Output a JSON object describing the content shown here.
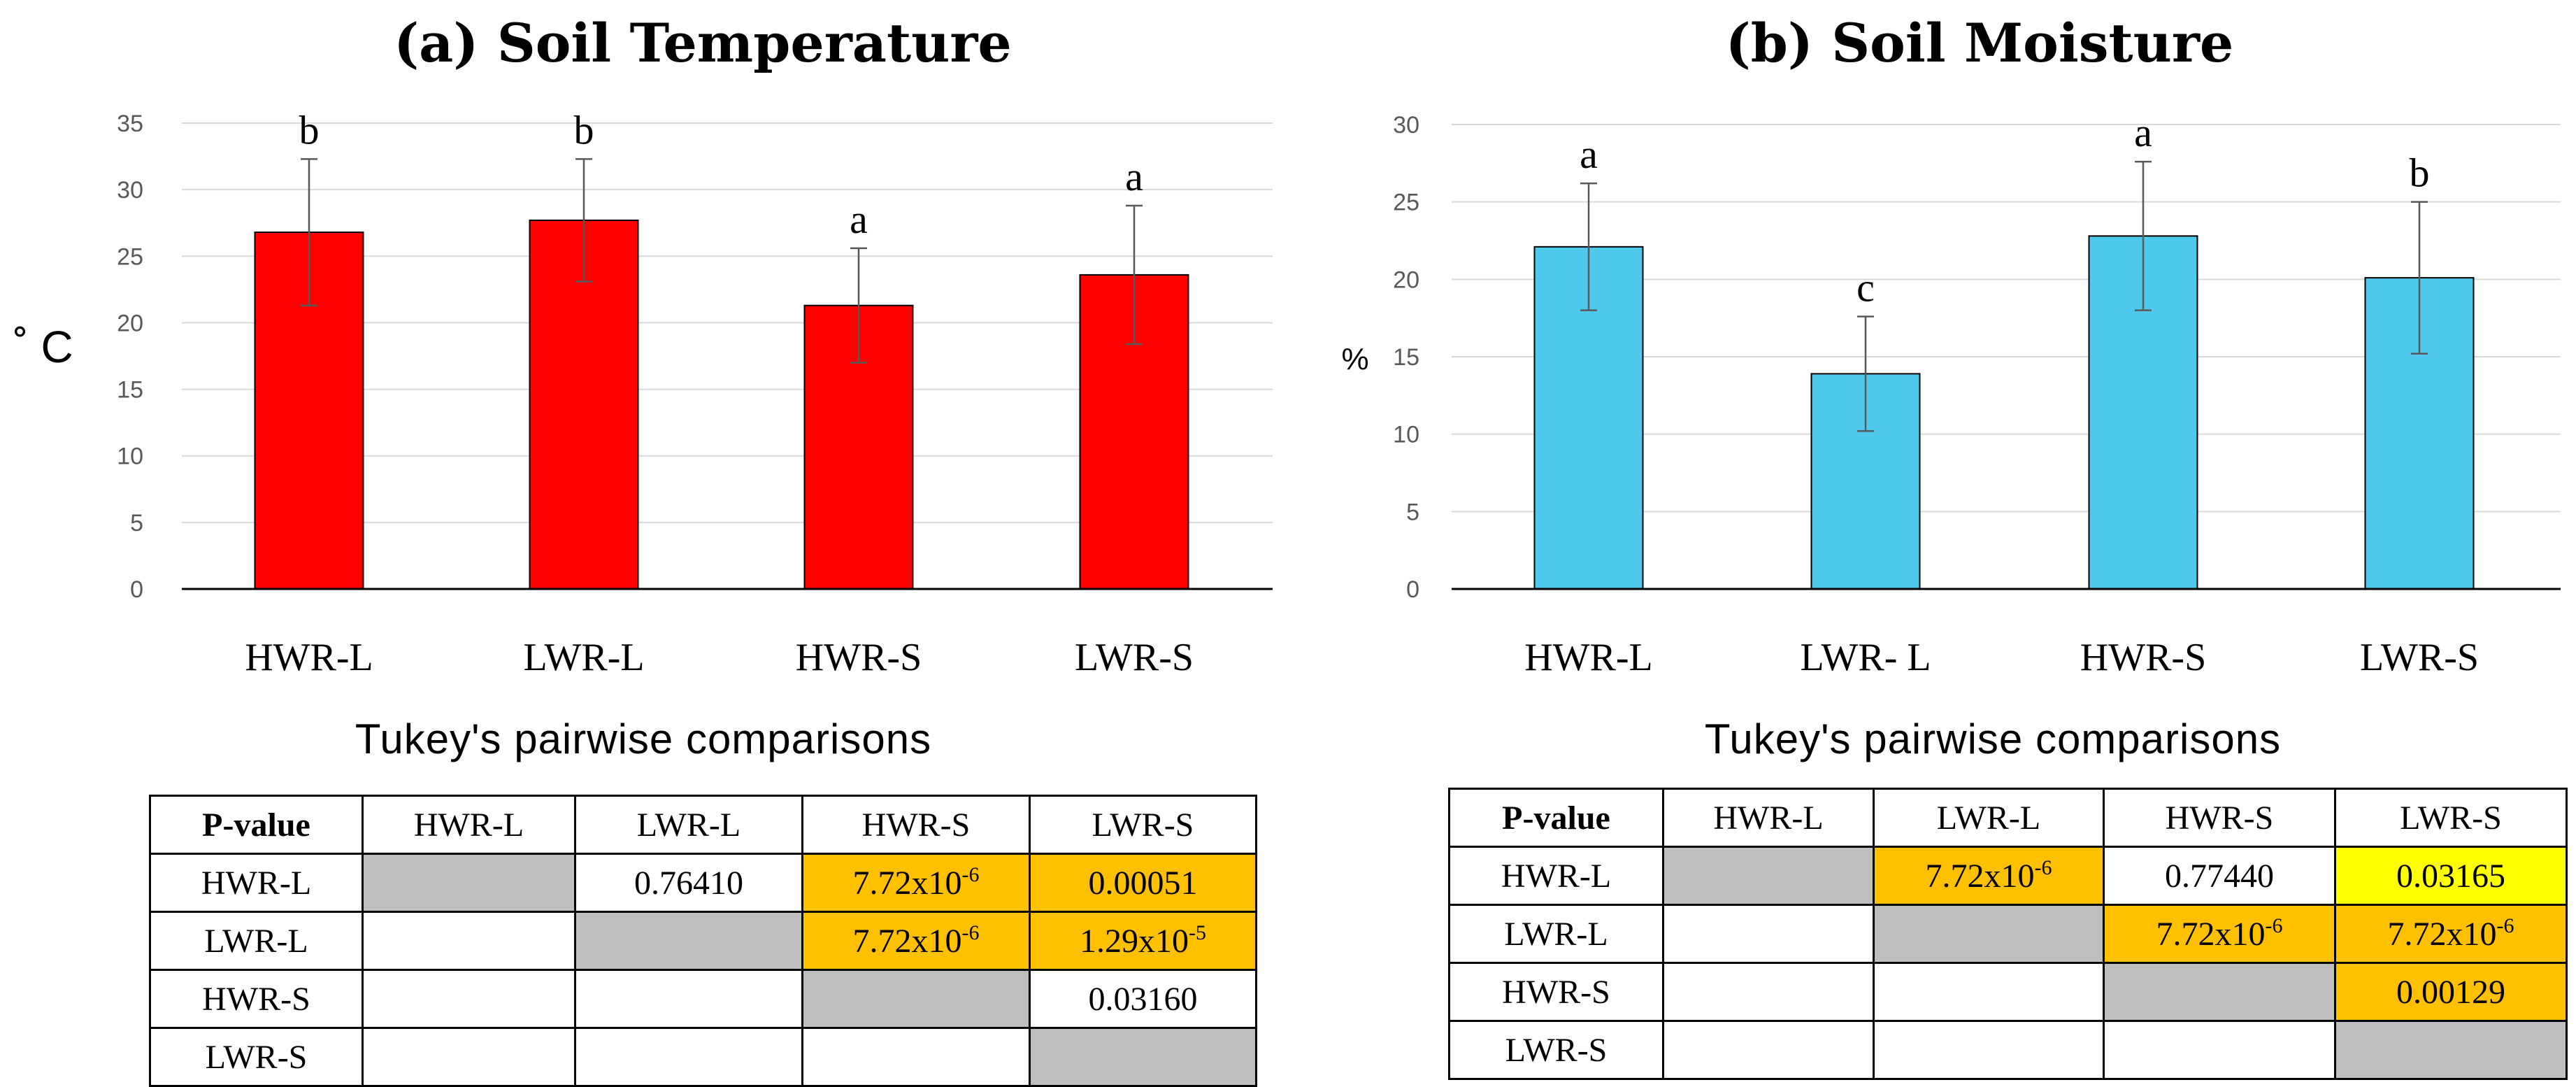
{
  "colors": {
    "panel_a_bar": "#ff0000",
    "panel_b_bar": "#4ec9ec",
    "diag": "#bfbfbf",
    "sig_high": "#ffc000",
    "sig_low": "#ffff00"
  },
  "chart_data": [
    {
      "type": "bar",
      "title": "(a) Soil Temperature",
      "ylabel": "˚ C",
      "xlabel": "",
      "categories": [
        "HWR-L",
        "LWR-L",
        "HWR-S",
        "LWR-S"
      ],
      "values": [
        26.8,
        27.7,
        21.3,
        23.6
      ],
      "errors": [
        5.5,
        4.6,
        4.3,
        5.2
      ],
      "letters": [
        "b",
        "b",
        "a",
        "a"
      ],
      "ylim": [
        0,
        35
      ],
      "yticks": [
        0,
        5,
        10,
        15,
        20,
        25,
        30,
        35
      ],
      "grid": true
    },
    {
      "type": "bar",
      "title": "(b) Soil Moisture",
      "ylabel": "%",
      "xlabel": "",
      "categories": [
        "HWR-L",
        "LWR- L",
        "HWR-S",
        "LWR-S"
      ],
      "values": [
        22.1,
        13.9,
        22.8,
        20.1
      ],
      "errors": [
        4.1,
        3.7,
        4.8,
        4.9
      ],
      "letters": [
        "a",
        "c",
        "a",
        "b"
      ],
      "ylim": [
        0,
        30
      ],
      "yticks": [
        0,
        5,
        10,
        15,
        20,
        25,
        30
      ],
      "grid": true
    }
  ],
  "tukey_a": {
    "title": "Tukey's pairwise comparisons",
    "header": [
      "P-value",
      "HWR-L",
      "LWR-L",
      "HWR-S",
      "LWR-S"
    ],
    "rows": [
      {
        "label": "HWR-L",
        "cells": [
          "",
          "0.76410",
          "7.72x10|-6",
          "0.00051"
        ],
        "status": [
          "diag",
          "none",
          "high",
          "high"
        ]
      },
      {
        "label": "LWR-L",
        "cells": [
          "",
          "",
          "7.72x10|-6",
          "1.29x10|-5"
        ],
        "status": [
          "none",
          "diag",
          "high",
          "high"
        ]
      },
      {
        "label": "HWR-S",
        "cells": [
          "",
          "",
          "",
          "0.03160"
        ],
        "status": [
          "none",
          "none",
          "diag",
          "none"
        ]
      },
      {
        "label": "LWR-S",
        "cells": [
          "",
          "",
          "",
          ""
        ],
        "status": [
          "none",
          "none",
          "none",
          "diag"
        ]
      }
    ]
  },
  "tukey_b": {
    "title": "Tukey's pairwise comparisons",
    "header": [
      "P-value",
      "HWR-L",
      "LWR-L",
      "HWR-S",
      "LWR-S"
    ],
    "rows": [
      {
        "label": "HWR-L",
        "cells": [
          "",
          "7.72x10|-6",
          "0.77440",
          "0.03165"
        ],
        "status": [
          "diag",
          "high",
          "none",
          "low"
        ]
      },
      {
        "label": "LWR-L",
        "cells": [
          "",
          "",
          "7.72x10|-6",
          "7.72x10|-6"
        ],
        "status": [
          "none",
          "diag",
          "high",
          "high"
        ]
      },
      {
        "label": "HWR-S",
        "cells": [
          "",
          "",
          "",
          "0.00129"
        ],
        "status": [
          "none",
          "none",
          "diag",
          "high"
        ]
      },
      {
        "label": "LWR-S",
        "cells": [
          "",
          "",
          "",
          ""
        ],
        "status": [
          "none",
          "none",
          "none",
          "diag"
        ]
      }
    ]
  }
}
